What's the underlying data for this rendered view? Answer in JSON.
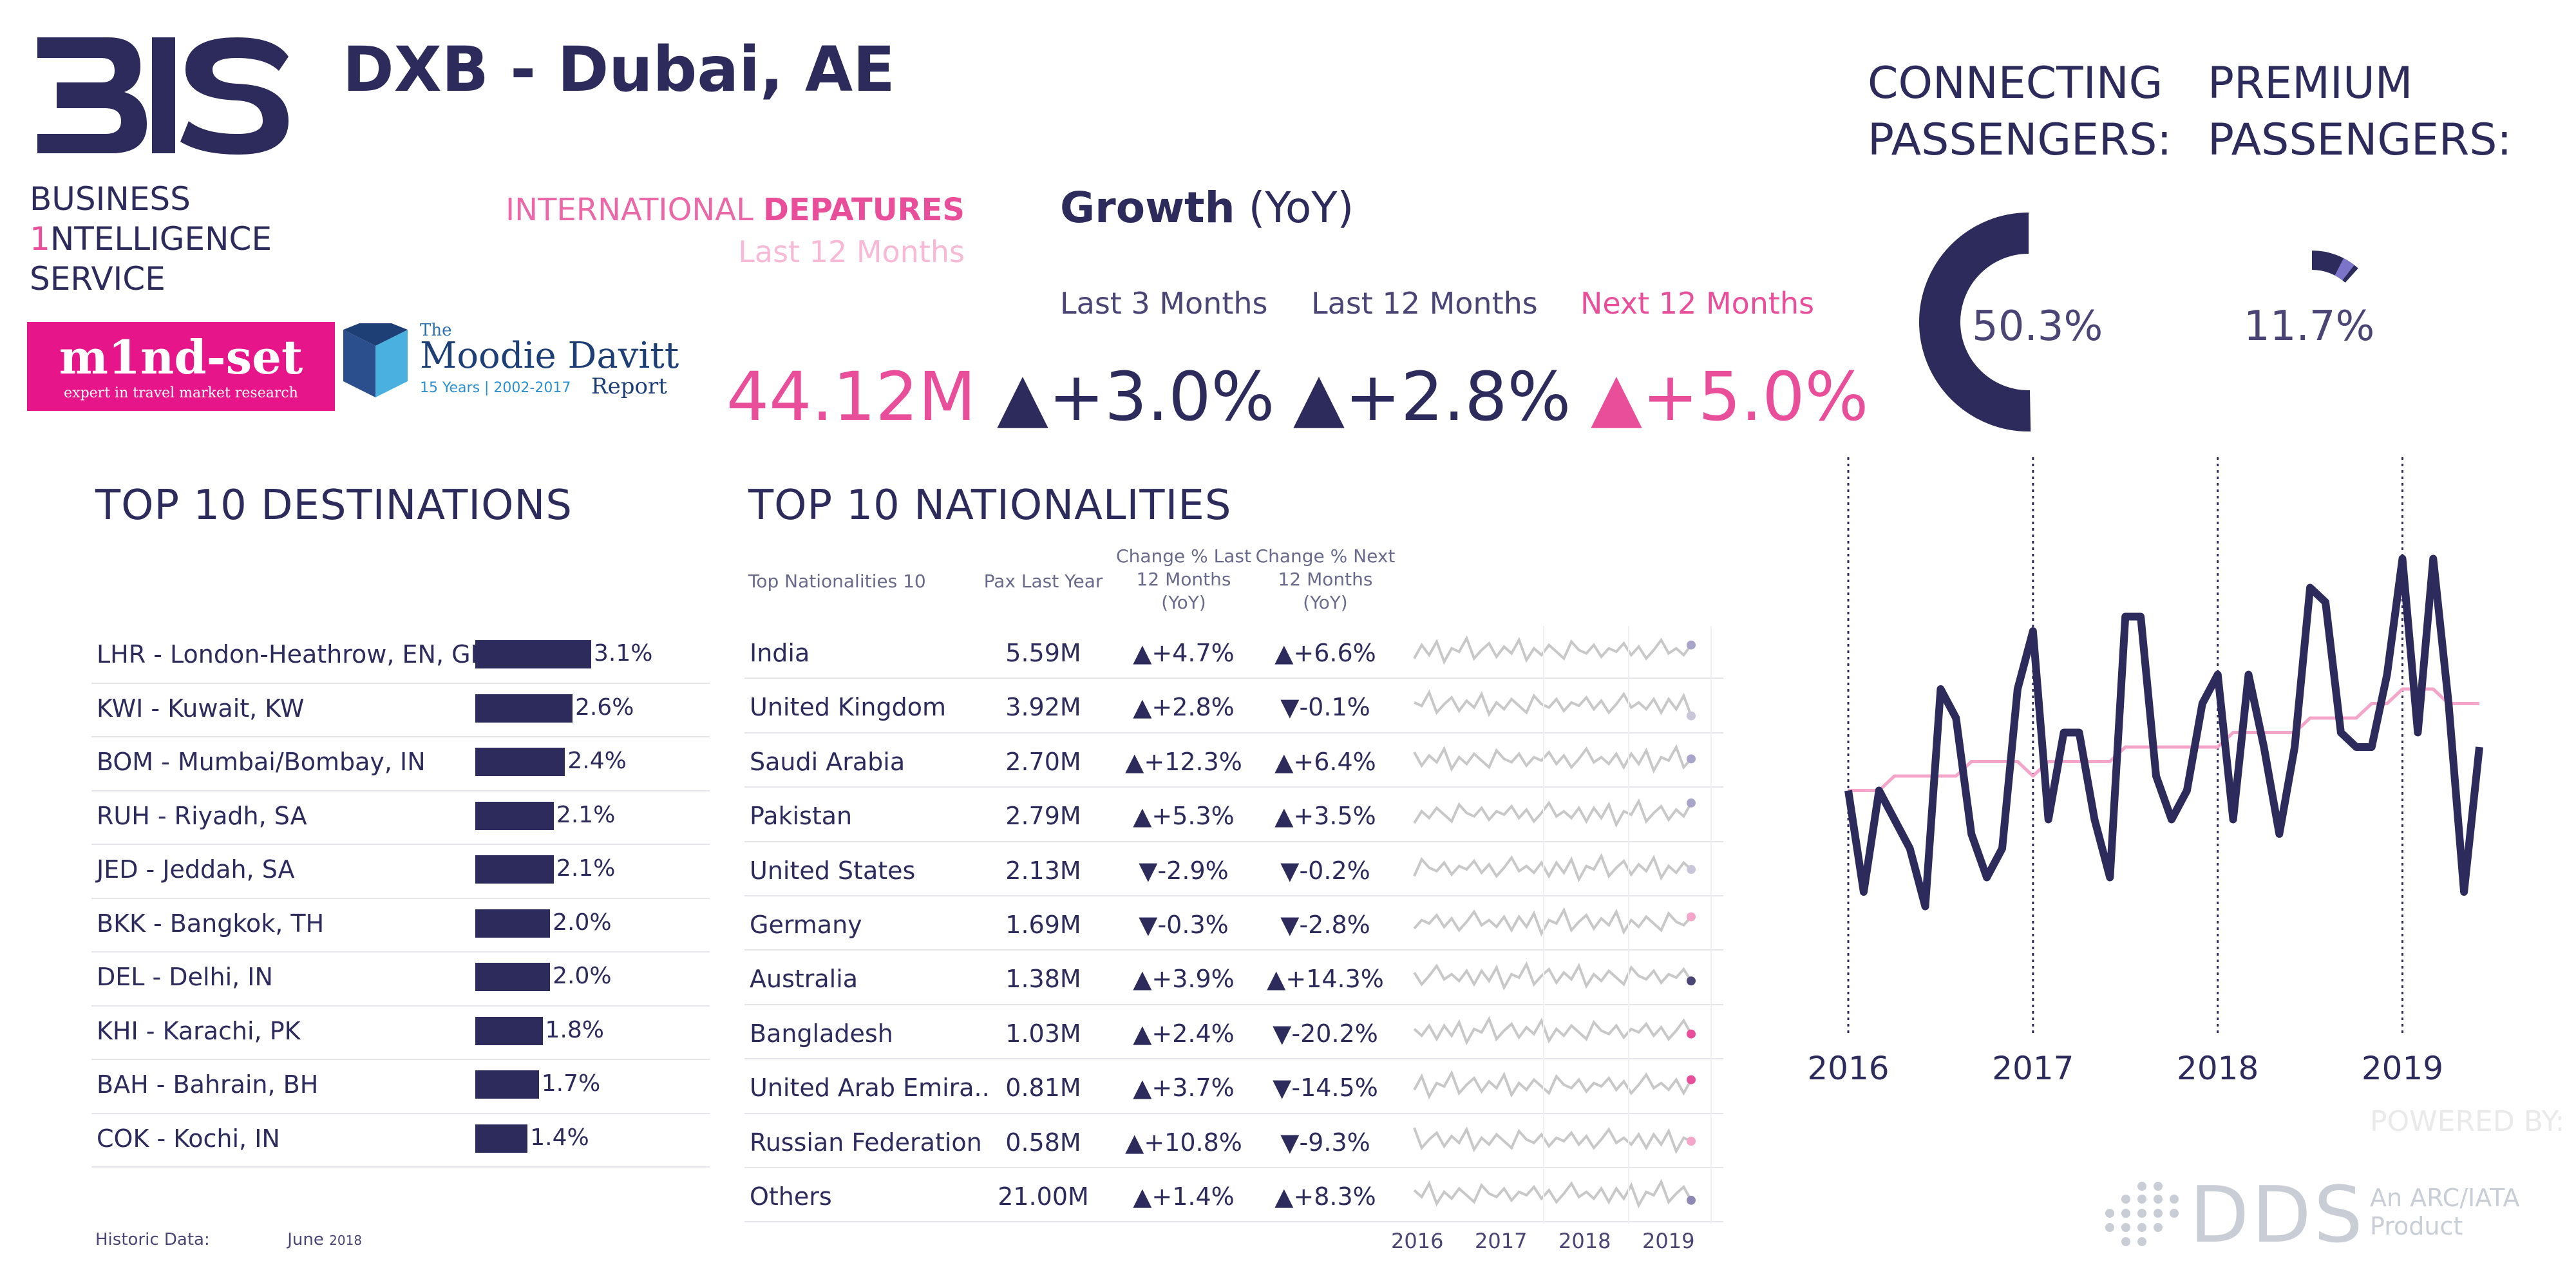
{
  "brand": {
    "logo_text": "BIS",
    "name_line1": "BUSINESS",
    "name_line2_digit": "1",
    "name_line2_rest": "NTELLIGENCE",
    "name_line3": "SERVICE",
    "mindset_name": "m1nd-set",
    "mindset_tagline": "expert in travel market research",
    "moodie_the": "The",
    "moodie_name": "Moodie Davitt",
    "moodie_years": "15 Years | 2002-2017",
    "moodie_report": "Report"
  },
  "header": {
    "title": "DXB - Dubai, AE",
    "intl_label_a": "INTERNATIONAL",
    "intl_label_b": "DEPATURES",
    "intl_sub": "Last 12 Months",
    "total": "44.12M"
  },
  "growth": {
    "title": "Growth",
    "title_suffix": "(YoY)",
    "periods": [
      {
        "label": "Last 3 Months",
        "value": "+3.0%",
        "color": "#2d2a5c"
      },
      {
        "label": "Last 12 Months",
        "value": "+2.8%",
        "color": "#2d2a5c"
      },
      {
        "label": "Next 12 Months",
        "value": "+5.0%",
        "color": "#e84e9a"
      }
    ]
  },
  "connecting": {
    "label_1": "CONNECTING",
    "label_2": "PASSENGERS:",
    "value": "50.3%",
    "fraction": 0.503
  },
  "premium": {
    "label_1": "PREMIUM",
    "label_2": "PASSENGERS:",
    "value": "11.7%",
    "fraction": 0.117
  },
  "destinations": {
    "title": "TOP 10 DESTINATIONS",
    "rows": [
      {
        "label": "LHR - London-Heathrow, EN, GB",
        "value": "3.1%",
        "share": 3.1
      },
      {
        "label": "KWI - Kuwait, KW",
        "value": "2.6%",
        "share": 2.6
      },
      {
        "label": "BOM - Mumbai/Bombay, IN",
        "value": "2.4%",
        "share": 2.4
      },
      {
        "label": "RUH - Riyadh, SA",
        "value": "2.1%",
        "share": 2.1
      },
      {
        "label": "JED - Jeddah, SA",
        "value": "2.1%",
        "share": 2.1
      },
      {
        "label": "BKK - Bangkok, TH",
        "value": "2.0%",
        "share": 2.0
      },
      {
        "label": "DEL - Delhi, IN",
        "value": "2.0%",
        "share": 2.0
      },
      {
        "label": "KHI - Karachi, PK",
        "value": "1.8%",
        "share": 1.8
      },
      {
        "label": "BAH - Bahrain, BH",
        "value": "1.7%",
        "share": 1.7
      },
      {
        "label": "COK - Kochi, IN",
        "value": "1.4%",
        "share": 1.4
      }
    ],
    "footer_label": "Historic Data:",
    "footer_month": "June",
    "footer_year": "2018"
  },
  "nationalities": {
    "title": "TOP 10 NATIONALITIES",
    "headers": [
      "Top Nationalities 10",
      "Pax Last Year",
      "Change % Last 12 Months (YoY)",
      "Change % Next 12 Months (YoY)"
    ],
    "rows": [
      {
        "name": "India",
        "pax": "5.59M",
        "last": "▲+4.7%",
        "next": "▲+6.6%",
        "dot": "#a9a4c9"
      },
      {
        "name": "United Kingdom",
        "pax": "3.92M",
        "last": "▲+2.8%",
        "next": "▼-0.1%",
        "dot": "#c8c6d8"
      },
      {
        "name": "Saudi Arabia",
        "pax": "2.70M",
        "last": "▲+12.3%",
        "next": "▲+6.4%",
        "dot": "#a9a4c9"
      },
      {
        "name": "Pakistan",
        "pax": "2.79M",
        "last": "▲+5.3%",
        "next": "▲+3.5%",
        "dot": "#a9a4c9"
      },
      {
        "name": "United States",
        "pax": "2.13M",
        "last": "▼-2.9%",
        "next": "▼-0.2%",
        "dot": "#c8c6d8"
      },
      {
        "name": "Germany",
        "pax": "1.69M",
        "last": "▼-0.3%",
        "next": "▼-2.8%",
        "dot": "#f3a6c9"
      },
      {
        "name": "Australia",
        "pax": "1.38M",
        "last": "▲+3.9%",
        "next": "▲+14.3%",
        "dot": "#4a4575"
      },
      {
        "name": "Bangladesh",
        "pax": "1.03M",
        "last": "▲+2.4%",
        "next": "▼-20.2%",
        "dot": "#e84e9a"
      },
      {
        "name": "United Arab Emira..",
        "pax": "0.81M",
        "last": "▲+3.7%",
        "next": "▼-14.5%",
        "dot": "#e84e9a"
      },
      {
        "name": "Russian Federation",
        "pax": "0.58M",
        "last": "▲+10.8%",
        "next": "▼-9.3%",
        "dot": "#f3a6c9"
      },
      {
        "name": "Others",
        "pax": "21.00M",
        "last": "▲+1.4%",
        "next": "▲+8.3%",
        "dot": "#8d88b4"
      }
    ],
    "spark_years": [
      "2016",
      "2017",
      "2018",
      "2019"
    ]
  },
  "chart_data": {
    "type": "line",
    "title": "",
    "x_ticks": [
      "2016",
      "2017",
      "2018",
      "2019"
    ],
    "series": [
      {
        "values": [
          3.2,
          2.5,
          3.2,
          3.0,
          2.8,
          2.4,
          3.9,
          3.7,
          2.9,
          2.6,
          2.8,
          3.9,
          4.3,
          3.0,
          3.6,
          3.6,
          3.0,
          2.6,
          4.4,
          4.4,
          3.3,
          3.0,
          3.2,
          3.8,
          4.0,
          3.0,
          4.0,
          3.5,
          2.9,
          3.5,
          4.6,
          4.5,
          3.6,
          3.5,
          3.5,
          4.0,
          4.8,
          3.6,
          4.8,
          3.8,
          2.5,
          3.5
        ],
        "color": "#2d2a5c"
      },
      {
        "values": [
          3.2,
          3.2,
          3.2,
          3.3,
          3.3,
          3.3,
          3.3,
          3.3,
          3.4,
          3.4,
          3.4,
          3.4,
          3.3,
          3.4,
          3.4,
          3.4,
          3.4,
          3.4,
          3.5,
          3.5,
          3.5,
          3.5,
          3.5,
          3.5,
          3.5,
          3.6,
          3.6,
          3.6,
          3.6,
          3.6,
          3.7,
          3.7,
          3.7,
          3.7,
          3.8,
          3.8,
          3.9,
          3.9,
          3.9,
          3.8,
          3.8,
          3.8
        ],
        "color": "#f3a6c9"
      }
    ],
    "grid": false
  },
  "footer": {
    "powered_by": "POWERED BY:",
    "dds": "DDS",
    "arc_1": "An ARC/IATA",
    "arc_2": "Product"
  }
}
